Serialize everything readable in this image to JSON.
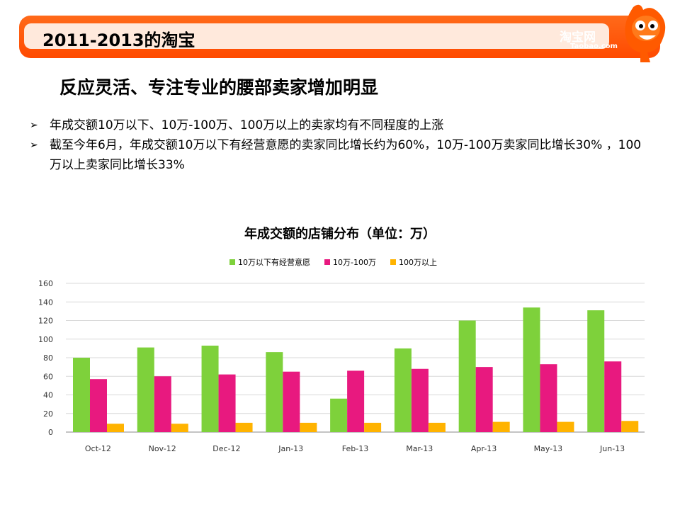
{
  "header": {
    "title": "2011-2013的淘宝",
    "logo_text": "淘宝网",
    "logo_sub": "Taobao.com"
  },
  "subtitle": "反应灵活、专注专业的腰部卖家增加明显",
  "bullets": [
    "年成交额10万以下、10万-100万、100万以上的卖家均有不同程度的上涨",
    "截至今年6月，年成交额10万以下有经营意愿的卖家同比增长约为60%，10万-100万卖家同比增长30% ，100万以上卖家同比增长33%"
  ],
  "colors": {
    "green": "#7ed13b",
    "pink": "#e8197f",
    "orange": "#ffb300",
    "brand": "#ff5500"
  },
  "chart_data": {
    "type": "bar",
    "title": "年成交额的店铺分布（单位：万）",
    "categories": [
      "Oct-12",
      "Nov-12",
      "Dec-12",
      "Jan-13",
      "Feb-13",
      "Mar-13",
      "Apr-13",
      "May-13",
      "Jun-13"
    ],
    "series": [
      {
        "name": "10万以下有经营意愿",
        "color": "#7ed13b",
        "values": [
          80,
          91,
          93,
          86,
          36,
          90,
          120,
          134,
          131
        ]
      },
      {
        "name": "10万-100万",
        "color": "#e8197f",
        "values": [
          57,
          60,
          62,
          65,
          66,
          68,
          70,
          73,
          76
        ]
      },
      {
        "name": "100万以上",
        "color": "#ffb300",
        "values": [
          9,
          9,
          10,
          10,
          10,
          10,
          11,
          11,
          12
        ]
      }
    ],
    "yticks": [
      "0",
      "20",
      "40",
      "60",
      "80",
      "100",
      "120",
      "140",
      "160"
    ],
    "ylim": [
      0,
      160
    ],
    "grid": true,
    "legend_position": "top"
  }
}
